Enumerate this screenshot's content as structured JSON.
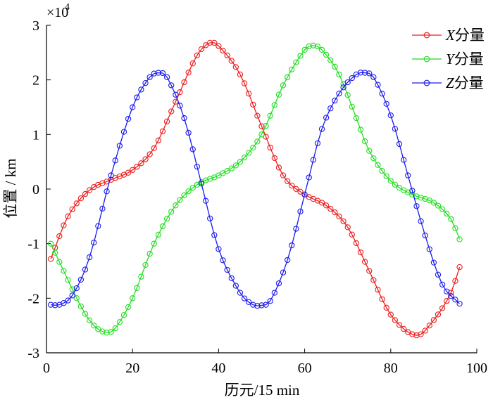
{
  "chart_data": {
    "type": "line",
    "title": "",
    "xlabel": "历元/15 min",
    "ylabel": "位置 / km",
    "y_multiplier_label": "×10",
    "y_multiplier_exp": "4",
    "xlim": [
      0,
      100
    ],
    "ylim": [
      -3,
      3
    ],
    "xticks": [
      0,
      20,
      40,
      60,
      80,
      100
    ],
    "yticks": [
      -3,
      -2,
      -1,
      0,
      1,
      2,
      3
    ],
    "xtick_labels": [
      "0",
      "20",
      "40",
      "60",
      "80",
      "100"
    ],
    "ytick_labels": [
      "-3",
      "-2",
      "-1",
      "0",
      "1",
      "2",
      "3"
    ],
    "legend_position": "top-right",
    "marker": "circle-open",
    "series": [
      {
        "name_italic": "X",
        "name_suffix": "分量",
        "color": "#ee1c1c",
        "x": [
          1,
          5,
          10,
          15,
          20,
          25,
          30,
          35,
          38,
          40,
          45,
          50,
          55,
          60,
          65,
          70,
          75,
          80,
          86,
          90,
          94,
          96
        ],
        "y": [
          -1.28,
          -0.5,
          -0.02,
          0.17,
          0.35,
          0.75,
          1.6,
          2.45,
          2.68,
          2.62,
          2.1,
          1.15,
          0.25,
          -0.1,
          -0.3,
          -0.7,
          -1.5,
          -2.3,
          -2.68,
          -2.4,
          -1.9,
          -1.43
        ]
      },
      {
        "name_italic": "Y",
        "name_suffix": "分量",
        "color": "#22dd22",
        "x": [
          1,
          4,
          8,
          11,
          14,
          16,
          20,
          25,
          30,
          35,
          40,
          45,
          50,
          55,
          60,
          62,
          64,
          68,
          72,
          75,
          80,
          85,
          90,
          94,
          96
        ],
        "y": [
          -1.0,
          -1.5,
          -2.15,
          -2.5,
          -2.63,
          -2.55,
          -2.0,
          -1.0,
          -0.3,
          0.08,
          0.25,
          0.5,
          1.0,
          1.9,
          2.55,
          2.63,
          2.55,
          2.1,
          1.3,
          0.7,
          0.15,
          -0.1,
          -0.25,
          -0.55,
          -0.92
        ]
      },
      {
        "name_italic": "Z",
        "name_suffix": "分量",
        "color": "#1a1aee",
        "x": [
          1,
          3,
          6,
          10,
          15,
          20,
          24,
          26,
          28,
          32,
          36,
          40,
          45,
          48,
          50,
          52,
          56,
          60,
          64,
          68,
          72,
          74,
          76,
          80,
          84,
          88,
          92,
          96
        ],
        "y": [
          -2.12,
          -2.12,
          -1.95,
          -1.25,
          0.25,
          1.5,
          2.05,
          2.13,
          2.05,
          1.3,
          0.1,
          -1.1,
          -1.9,
          -2.12,
          -2.13,
          -2.05,
          -1.3,
          -0.1,
          1.1,
          1.75,
          2.1,
          2.13,
          2.05,
          1.35,
          0.25,
          -0.85,
          -1.75,
          -2.1
        ]
      }
    ]
  }
}
